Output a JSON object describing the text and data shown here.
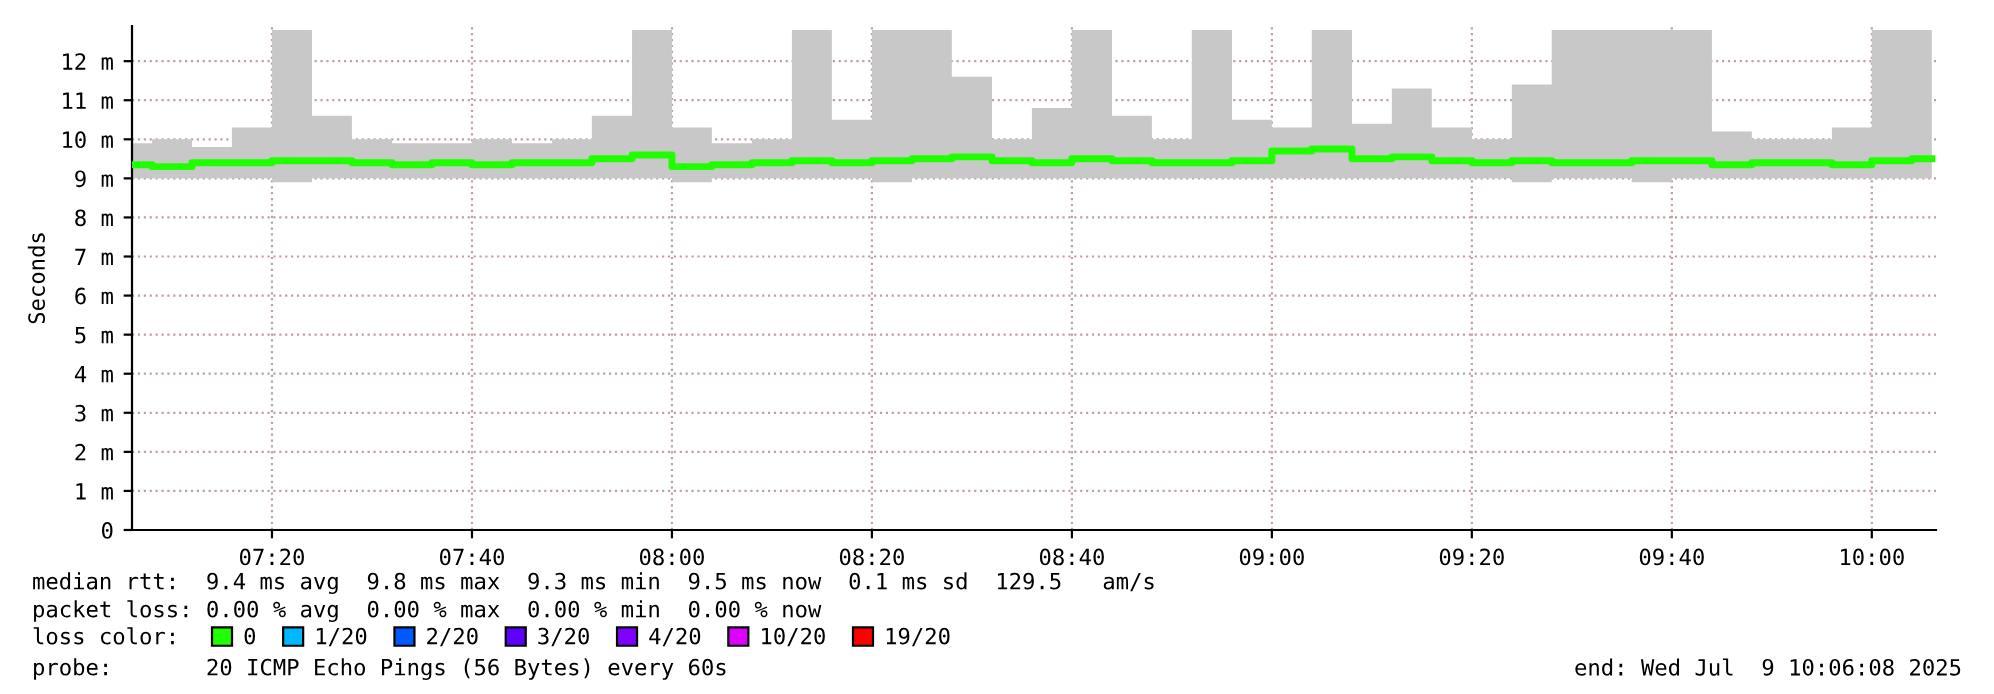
{
  "chart_data": {
    "type": "line",
    "ylabel": "Seconds",
    "legend_title": "loss color:",
    "legend": "bottom",
    "grid": true,
    "line_style": "solid",
    "xlim": [
      7.1,
      10.107
    ],
    "xticks": [
      {
        "value": 7.3333,
        "label": "07:20"
      },
      {
        "value": 7.6667,
        "label": "07:40"
      },
      {
        "value": 8.0,
        "label": "08:00"
      },
      {
        "value": 8.3333,
        "label": "08:20"
      },
      {
        "value": 8.6667,
        "label": "08:40"
      },
      {
        "value": 9.0,
        "label": "09:00"
      },
      {
        "value": 9.3333,
        "label": "09:20"
      },
      {
        "value": 9.6667,
        "label": "09:40"
      },
      {
        "value": 10.0,
        "label": "10:00"
      }
    ],
    "ylim": [
      0,
      12.9
    ],
    "yticks": [
      0,
      {
        "value": 1,
        "label": "1 m"
      },
      {
        "value": 2,
        "label": "2 m"
      },
      {
        "value": 3,
        "label": "3 m"
      },
      {
        "value": 4,
        "label": "4 m"
      },
      {
        "value": 5,
        "label": "5 m"
      },
      {
        "value": 6,
        "label": "6 m"
      },
      {
        "value": 7,
        "label": "7 m"
      },
      {
        "value": 8,
        "label": "8 m"
      },
      {
        "value": 9,
        "label": "9 m"
      },
      {
        "value": 10,
        "label": "10 m"
      },
      {
        "value": 11,
        "label": "11 m"
      },
      {
        "value": 12,
        "label": "12 m"
      }
    ],
    "x": [
      7.1,
      7.167,
      7.233,
      7.3,
      7.367,
      7.433,
      7.5,
      7.567,
      7.633,
      7.7,
      7.767,
      7.833,
      7.9,
      7.967,
      8.033,
      8.1,
      8.167,
      8.233,
      8.3,
      8.367,
      8.433,
      8.5,
      8.567,
      8.633,
      8.7,
      8.767,
      8.833,
      8.9,
      8.967,
      9.033,
      9.1,
      9.167,
      9.233,
      9.3,
      9.367,
      9.433,
      9.5,
      9.567,
      9.633,
      9.7,
      9.767,
      9.833,
      9.9,
      9.967,
      10.033,
      10.1
    ],
    "series": [
      {
        "name": "0",
        "color": "#20ff00",
        "values": [
          9.35,
          9.3,
          9.4,
          9.4,
          9.45,
          9.45,
          9.4,
          9.35,
          9.4,
          9.35,
          9.4,
          9.4,
          9.5,
          9.6,
          9.3,
          9.35,
          9.4,
          9.45,
          9.4,
          9.45,
          9.5,
          9.55,
          9.45,
          9.4,
          9.5,
          9.45,
          9.4,
          9.4,
          9.45,
          9.7,
          9.75,
          9.5,
          9.55,
          9.45,
          9.4,
          9.45,
          9.4,
          9.4,
          9.45,
          9.45,
          9.35,
          9.4,
          9.4,
          9.35,
          9.45,
          9.5
        ],
        "lower": [
          9.0,
          9.0,
          9.0,
          9.0,
          8.9,
          9.0,
          9.0,
          9.0,
          9.0,
          9.0,
          9.0,
          9.0,
          9.0,
          9.0,
          8.9,
          9.0,
          9.0,
          9.0,
          9.0,
          8.9,
          9.0,
          9.0,
          9.0,
          9.0,
          9.0,
          9.0,
          9.0,
          9.0,
          9.0,
          9.0,
          9.0,
          9.0,
          9.0,
          9.0,
          9.0,
          8.9,
          9.0,
          9.0,
          8.9,
          9.0,
          9.0,
          9.0,
          9.0,
          9.0,
          9.0,
          9.0
        ],
        "upper": [
          9.9,
          10.0,
          9.8,
          10.3,
          12.8,
          10.6,
          10.0,
          9.9,
          9.9,
          10.0,
          9.9,
          10.0,
          10.6,
          12.8,
          10.3,
          9.9,
          10.0,
          12.8,
          10.5,
          12.8,
          12.8,
          11.6,
          10.0,
          10.8,
          12.8,
          10.6,
          10.0,
          12.8,
          10.5,
          10.3,
          12.8,
          10.4,
          11.3,
          10.3,
          10.0,
          11.4,
          12.8,
          12.8,
          12.8,
          12.8,
          10.2,
          10.0,
          10.0,
          10.3,
          12.8,
          12.8
        ]
      },
      {
        "name": "1/20",
        "color": "#00b8ff",
        "values": [
          null,
          null,
          null,
          null,
          null,
          null,
          null,
          null,
          null,
          null,
          null,
          null,
          null,
          null,
          null,
          null,
          null,
          null,
          null,
          null,
          null,
          null,
          null,
          null,
          null,
          null,
          null,
          null,
          null,
          null,
          null,
          null,
          null,
          null,
          null,
          null,
          null,
          null,
          null,
          null,
          null,
          null,
          null,
          null,
          null,
          null
        ]
      },
      {
        "name": "2/20",
        "color": "#0059ff",
        "values": [
          null,
          null,
          null,
          null,
          null,
          null,
          null,
          null,
          null,
          null,
          null,
          null,
          null,
          null,
          null,
          null,
          null,
          null,
          null,
          null,
          null,
          null,
          null,
          null,
          null,
          null,
          null,
          null,
          null,
          null,
          null,
          null,
          null,
          null,
          null,
          null,
          null,
          null,
          null,
          null,
          null,
          null,
          null,
          null,
          null,
          null
        ]
      },
      {
        "name": "3/20",
        "color": "#5e00ff",
        "values": [
          null,
          null,
          null,
          null,
          null,
          null,
          null,
          null,
          null,
          null,
          null,
          null,
          null,
          null,
          null,
          null,
          null,
          null,
          null,
          null,
          null,
          null,
          null,
          null,
          null,
          null,
          null,
          null,
          null,
          null,
          null,
          null,
          null,
          null,
          null,
          null,
          null,
          null,
          null,
          null,
          null,
          null,
          null,
          null,
          null,
          null
        ]
      },
      {
        "name": "4/20",
        "color": "#7e00ff",
        "values": [
          null,
          null,
          null,
          null,
          null,
          null,
          null,
          null,
          null,
          null,
          null,
          null,
          null,
          null,
          null,
          null,
          null,
          null,
          null,
          null,
          null,
          null,
          null,
          null,
          null,
          null,
          null,
          null,
          null,
          null,
          null,
          null,
          null,
          null,
          null,
          null,
          null,
          null,
          null,
          null,
          null,
          null,
          null,
          null,
          null,
          null
        ]
      },
      {
        "name": "10/20",
        "color": "#dd00ff",
        "values": [
          null,
          null,
          null,
          null,
          null,
          null,
          null,
          null,
          null,
          null,
          null,
          null,
          null,
          null,
          null,
          null,
          null,
          null,
          null,
          null,
          null,
          null,
          null,
          null,
          null,
          null,
          null,
          null,
          null,
          null,
          null,
          null,
          null,
          null,
          null,
          null,
          null,
          null,
          null,
          null,
          null,
          null,
          null,
          null,
          null,
          null
        ]
      },
      {
        "name": "19/20",
        "color": "#ff0000",
        "values": [
          null,
          null,
          null,
          null,
          null,
          null,
          null,
          null,
          null,
          null,
          null,
          null,
          null,
          null,
          null,
          null,
          null,
          null,
          null,
          null,
          null,
          null,
          null,
          null,
          null,
          null,
          null,
          null,
          null,
          null,
          null,
          null,
          null,
          null,
          null,
          null,
          null,
          null,
          null,
          null,
          null,
          null,
          null,
          null,
          null,
          null
        ]
      }
    ],
    "annotations": [
      "median rtt:  9.4 ms avg  9.8 ms max  9.3 ms min  9.5 ms now  0.1 ms sd  129.5   am/s",
      "packet loss: 0.00 % avg  0.00 % max  0.00 % min  0.00 % now",
      "probe:       20 ICMP Echo Pings (56 Bytes) every 60s",
      "end: Wed Jul  9 10:06:08 2025"
    ]
  }
}
